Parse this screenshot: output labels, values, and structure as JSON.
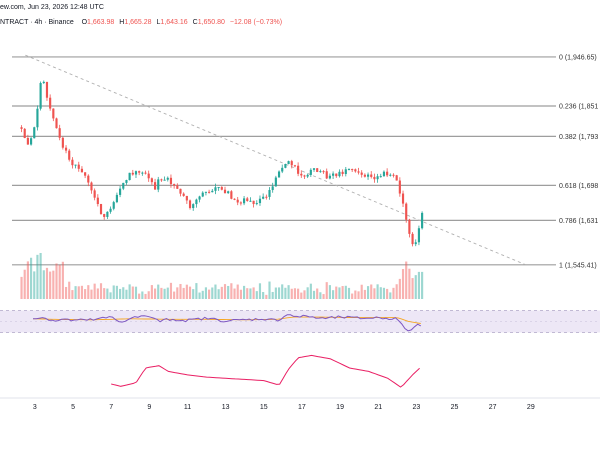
{
  "header": {
    "source_date": "ew.com, Jun 23, 2026 12:48 UTC",
    "symbol": "NTRACT · 4h · Binance",
    "open_label": "O",
    "open": "1,663.98",
    "high_label": "H",
    "high": "1,665.28",
    "low_label": "L",
    "low": "1,643.16",
    "close_label": "C",
    "close": "1,650.80",
    "change": "−12.08 (−0.73%)"
  },
  "colors": {
    "up": "#26a69a",
    "down": "#ef5350",
    "fib_line": "#9e9e9e",
    "trendline": "#b0b0b0",
    "rsi_line": "#7e57c2",
    "rsi_ma": "#f5a623",
    "rsi_band": "#ede7f6",
    "adx_line": "#e91e63"
  },
  "chart_data": {
    "type": "candlestick",
    "title": "",
    "ylim": [
      1520,
      1960
    ],
    "fib_levels": [
      {
        "ratio": 0,
        "label": "0 (1,946.65)"
      },
      {
        "ratio": 0.236,
        "label": "0.236 (1,851"
      },
      {
        "ratio": 0.382,
        "label": "0.382 (1,793"
      },
      {
        "ratio": 0.618,
        "label": "0.618 (1,698"
      },
      {
        "ratio": 0.786,
        "label": "0.786 (1,631"
      },
      {
        "ratio": 1,
        "label": "1 (1,545.41)"
      }
    ],
    "fib_high": 1946.65,
    "fib_low": 1545.41,
    "trendline": {
      "from": [
        2.5,
        1950
      ],
      "to": [
        28.7,
        1546
      ]
    },
    "x_ticks": [
      3,
      5,
      7,
      9,
      11,
      13,
      15,
      17,
      19,
      21,
      23,
      25,
      27,
      29
    ],
    "x_range": [
      1.8,
      29.9
    ],
    "anchors_close": [
      [
        2.3,
        1805
      ],
      [
        2.6,
        1770
      ],
      [
        3.0,
        1820
      ],
      [
        3.4,
        1915
      ],
      [
        3.6,
        1865
      ],
      [
        3.9,
        1840
      ],
      [
        4.2,
        1800
      ],
      [
        4.5,
        1770
      ],
      [
        5.0,
        1740
      ],
      [
        5.7,
        1720
      ],
      [
        6.2,
        1665
      ],
      [
        6.6,
        1640
      ],
      [
        7.0,
        1660
      ],
      [
        7.5,
        1700
      ],
      [
        8.0,
        1722
      ],
      [
        8.5,
        1722
      ],
      [
        9.0,
        1712
      ],
      [
        9.3,
        1695
      ],
      [
        9.7,
        1718
      ],
      [
        10.3,
        1700
      ],
      [
        10.8,
        1675
      ],
      [
        11.2,
        1650
      ],
      [
        11.6,
        1680
      ],
      [
        12.0,
        1690
      ],
      [
        12.5,
        1695
      ],
      [
        13.0,
        1688
      ],
      [
        13.5,
        1668
      ],
      [
        14.0,
        1670
      ],
      [
        14.5,
        1665
      ],
      [
        15.0,
        1675
      ],
      [
        15.5,
        1695
      ],
      [
        15.9,
        1735
      ],
      [
        16.2,
        1745
      ],
      [
        16.6,
        1735
      ],
      [
        17.0,
        1718
      ],
      [
        17.5,
        1728
      ],
      [
        18.0,
        1722
      ],
      [
        18.5,
        1715
      ],
      [
        19.0,
        1722
      ],
      [
        19.5,
        1726
      ],
      [
        20.0,
        1722
      ],
      [
        20.5,
        1718
      ],
      [
        21.0,
        1715
      ],
      [
        21.5,
        1722
      ],
      [
        22.0,
        1712
      ],
      [
        22.3,
        1660
      ],
      [
        22.6,
        1605
      ],
      [
        22.9,
        1580
      ],
      [
        23.2,
        1632
      ],
      [
        23.4,
        1651
      ]
    ],
    "rsi_anchors": [
      [
        2.9,
        56
      ],
      [
        3.5,
        57
      ],
      [
        4.0,
        51
      ],
      [
        4.5,
        54
      ],
      [
        5.0,
        52
      ],
      [
        6.0,
        53
      ],
      [
        7.0,
        58
      ],
      [
        7.5,
        48
      ],
      [
        8.0,
        57
      ],
      [
        9.0,
        60
      ],
      [
        9.5,
        50
      ],
      [
        10.0,
        54
      ],
      [
        11.0,
        52
      ],
      [
        12.0,
        56
      ],
      [
        13.0,
        51
      ],
      [
        14.0,
        53
      ],
      [
        15.0,
        55
      ],
      [
        15.7,
        52
      ],
      [
        16.3,
        64
      ],
      [
        16.7,
        58
      ],
      [
        17.3,
        60
      ],
      [
        18.0,
        55
      ],
      [
        19.0,
        58
      ],
      [
        20.0,
        56
      ],
      [
        21.0,
        57
      ],
      [
        22.0,
        55
      ],
      [
        22.3,
        40
      ],
      [
        22.7,
        32
      ],
      [
        23.0,
        45
      ],
      [
        23.3,
        44
      ]
    ],
    "rsi_ma_anchors": [
      [
        2.9,
        55
      ],
      [
        4.0,
        54
      ],
      [
        6.0,
        53
      ],
      [
        8.0,
        55
      ],
      [
        10.0,
        54
      ],
      [
        12.0,
        54
      ],
      [
        14.0,
        53
      ],
      [
        15.7,
        54
      ],
      [
        16.5,
        58
      ],
      [
        18.0,
        58
      ],
      [
        20.0,
        57
      ],
      [
        22.0,
        57
      ],
      [
        22.6,
        50
      ],
      [
        23.3,
        46
      ]
    ],
    "adx_anchors": [
      [
        7.0,
        22
      ],
      [
        7.5,
        20
      ],
      [
        8.3,
        23
      ],
      [
        8.8,
        36
      ],
      [
        9.5,
        38
      ],
      [
        10.0,
        33
      ],
      [
        11.0,
        30
      ],
      [
        12.0,
        28
      ],
      [
        13.0,
        27
      ],
      [
        14.0,
        26
      ],
      [
        15.0,
        25
      ],
      [
        15.8,
        21
      ],
      [
        16.3,
        35
      ],
      [
        16.8,
        45
      ],
      [
        17.5,
        47
      ],
      [
        18.5,
        44
      ],
      [
        19.5,
        36
      ],
      [
        20.5,
        33
      ],
      [
        21.5,
        27
      ],
      [
        22.2,
        19
      ],
      [
        22.8,
        30
      ],
      [
        23.3,
        38
      ]
    ]
  }
}
